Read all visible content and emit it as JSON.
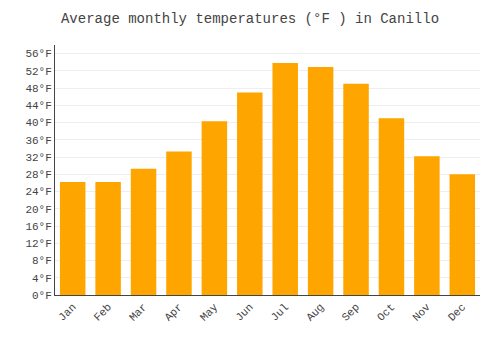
{
  "chart_data": {
    "type": "bar",
    "title": "Average monthly temperatures (°F ) in Canillo",
    "categories": [
      "Jan",
      "Feb",
      "Mar",
      "Apr",
      "May",
      "Jun",
      "Jul",
      "Aug",
      "Sep",
      "Oct",
      "Nov",
      "Dec"
    ],
    "values": [
      26.2,
      26.2,
      29.3,
      33.3,
      40.3,
      47.0,
      53.8,
      52.9,
      49.0,
      41.0,
      32.2,
      28.0
    ],
    "color": "#FFA500",
    "ylim": [
      0,
      58
    ],
    "yticks": [
      {
        "value": 0,
        "label": "0°F"
      },
      {
        "value": 4,
        "label": "4°F"
      },
      {
        "value": 8,
        "label": "8°F"
      },
      {
        "value": 12,
        "label": "12°F"
      },
      {
        "value": 16,
        "label": "16°F"
      },
      {
        "value": 20,
        "label": "20°F"
      },
      {
        "value": 24,
        "label": "24°F"
      },
      {
        "value": 28,
        "label": "28°F"
      },
      {
        "value": 32,
        "label": "32°F"
      },
      {
        "value": 36,
        "label": "36°F"
      },
      {
        "value": 40,
        "label": "40°F"
      },
      {
        "value": 44,
        "label": "44°F"
      },
      {
        "value": 48,
        "label": "48°F"
      },
      {
        "value": 52,
        "label": "52°F"
      },
      {
        "value": 56,
        "label": "56°F"
      }
    ],
    "grid": true
  }
}
